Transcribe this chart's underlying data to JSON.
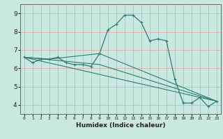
{
  "xlabel": "Humidex (Indice chaleur)",
  "ylabel": "",
  "background_color": "#c8e8e0",
  "grid_color": "#e8a0a0",
  "line_color": "#2e7d6e",
  "xlim": [
    -0.5,
    23.5
  ],
  "ylim": [
    3.5,
    9.5
  ],
  "xticks": [
    0,
    1,
    2,
    3,
    4,
    5,
    6,
    7,
    8,
    9,
    10,
    11,
    12,
    13,
    14,
    15,
    16,
    17,
    18,
    19,
    20,
    21,
    22,
    23
  ],
  "yticks": [
    4,
    5,
    6,
    7,
    8,
    9
  ],
  "series_main": {
    "x": [
      0,
      1,
      2,
      3,
      4,
      5,
      6,
      7,
      8,
      9,
      10,
      11,
      12,
      13,
      14,
      15,
      16,
      17,
      18,
      19,
      20,
      21,
      22,
      23
    ],
    "y": [
      6.6,
      6.3,
      6.5,
      6.5,
      6.6,
      6.3,
      6.2,
      6.2,
      6.1,
      6.8,
      8.1,
      8.4,
      8.9,
      8.9,
      8.5,
      7.5,
      7.6,
      7.5,
      5.4,
      4.1,
      4.1,
      4.4,
      3.9,
      4.2
    ]
  },
  "series_line1": {
    "x": [
      0,
      23
    ],
    "y": [
      6.6,
      4.2
    ]
  },
  "series_line2": {
    "x": [
      0,
      9,
      23
    ],
    "y": [
      6.6,
      6.2,
      4.2
    ]
  },
  "series_line3": {
    "x": [
      0,
      3,
      9,
      23
    ],
    "y": [
      6.6,
      6.5,
      6.8,
      4.2
    ]
  }
}
